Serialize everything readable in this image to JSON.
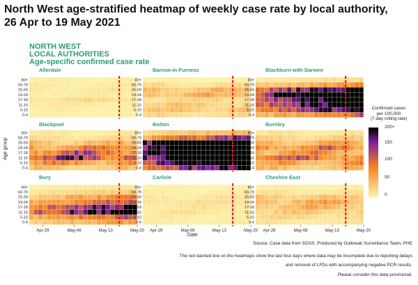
{
  "title": "North West age-stratified heatmap of weekly case rate by local authority, 26 Apr to 19 May 2021",
  "subtitle_lines": [
    "NORTH WEST",
    "LOCAL AUTHORITIES",
    "Age-specific confirmed case rate"
  ],
  "footnotes": [
    "Source: Case data from SGSS. Produced by Outbreak Surveillance Team, PHE",
    "The red dashed line on the heatmaps show the last four days where data may be incomplete due to reporting delays",
    "and removal of LFDs with accompanying negative PCR results.",
    "Please consider this data provisional."
  ],
  "colors": {
    "low": "#fdf7b0",
    "mid": "#f5801e",
    "high": "#7b1fa2",
    "max": "#000000",
    "title_green": "#2a9d6f",
    "dash": "#e4151f"
  },
  "chart_data": {
    "type": "heatmap",
    "xlabel": "Date",
    "ylabel": "Age group",
    "age_groups": [
      "80+",
      "60-79",
      "25-59",
      "19-24",
      "17-18",
      "11-16",
      "5-10",
      "0-4"
    ],
    "x_ticks": [
      "Apr-29",
      "May-06",
      "May-13",
      "May-20"
    ],
    "legend": {
      "title": [
        "Confirmed cases",
        "per 100,000",
        "(7-day rolling rate)"
      ],
      "ticks": [
        "200+",
        "150",
        "100",
        "50",
        "0"
      ],
      "range": [
        0,
        200
      ]
    },
    "days": 24,
    "incomplete_days": 4,
    "panels": [
      {
        "name": "Allerdale",
        "levels": [
          8,
          10,
          12,
          10,
          22,
          12,
          8,
          6
        ]
      },
      {
        "name": "Barrow-in-Furness",
        "levels": [
          6,
          20,
          45,
          55,
          30,
          35,
          40,
          25
        ]
      },
      {
        "name": "Blackburn with Darwen",
        "levels": [
          15,
          55,
          170,
          230,
          200,
          190,
          150,
          80
        ]
      },
      {
        "name": "Blackpool",
        "levels": [
          12,
          20,
          50,
          90,
          120,
          150,
          80,
          40
        ]
      },
      {
        "name": "Bolton",
        "levels": [
          40,
          110,
          280,
          320,
          300,
          290,
          230,
          160
        ]
      },
      {
        "name": "Burnley",
        "levels": [
          15,
          30,
          60,
          95,
          80,
          110,
          70,
          45
        ]
      },
      {
        "name": "Bury",
        "levels": [
          10,
          25,
          60,
          90,
          140,
          170,
          90,
          50
        ]
      },
      {
        "name": "Carlisle",
        "levels": [
          5,
          8,
          15,
          20,
          15,
          15,
          10,
          8
        ]
      },
      {
        "name": "Cheshire East",
        "levels": [
          8,
          15,
          40,
          55,
          50,
          35,
          25,
          15
        ]
      }
    ]
  }
}
